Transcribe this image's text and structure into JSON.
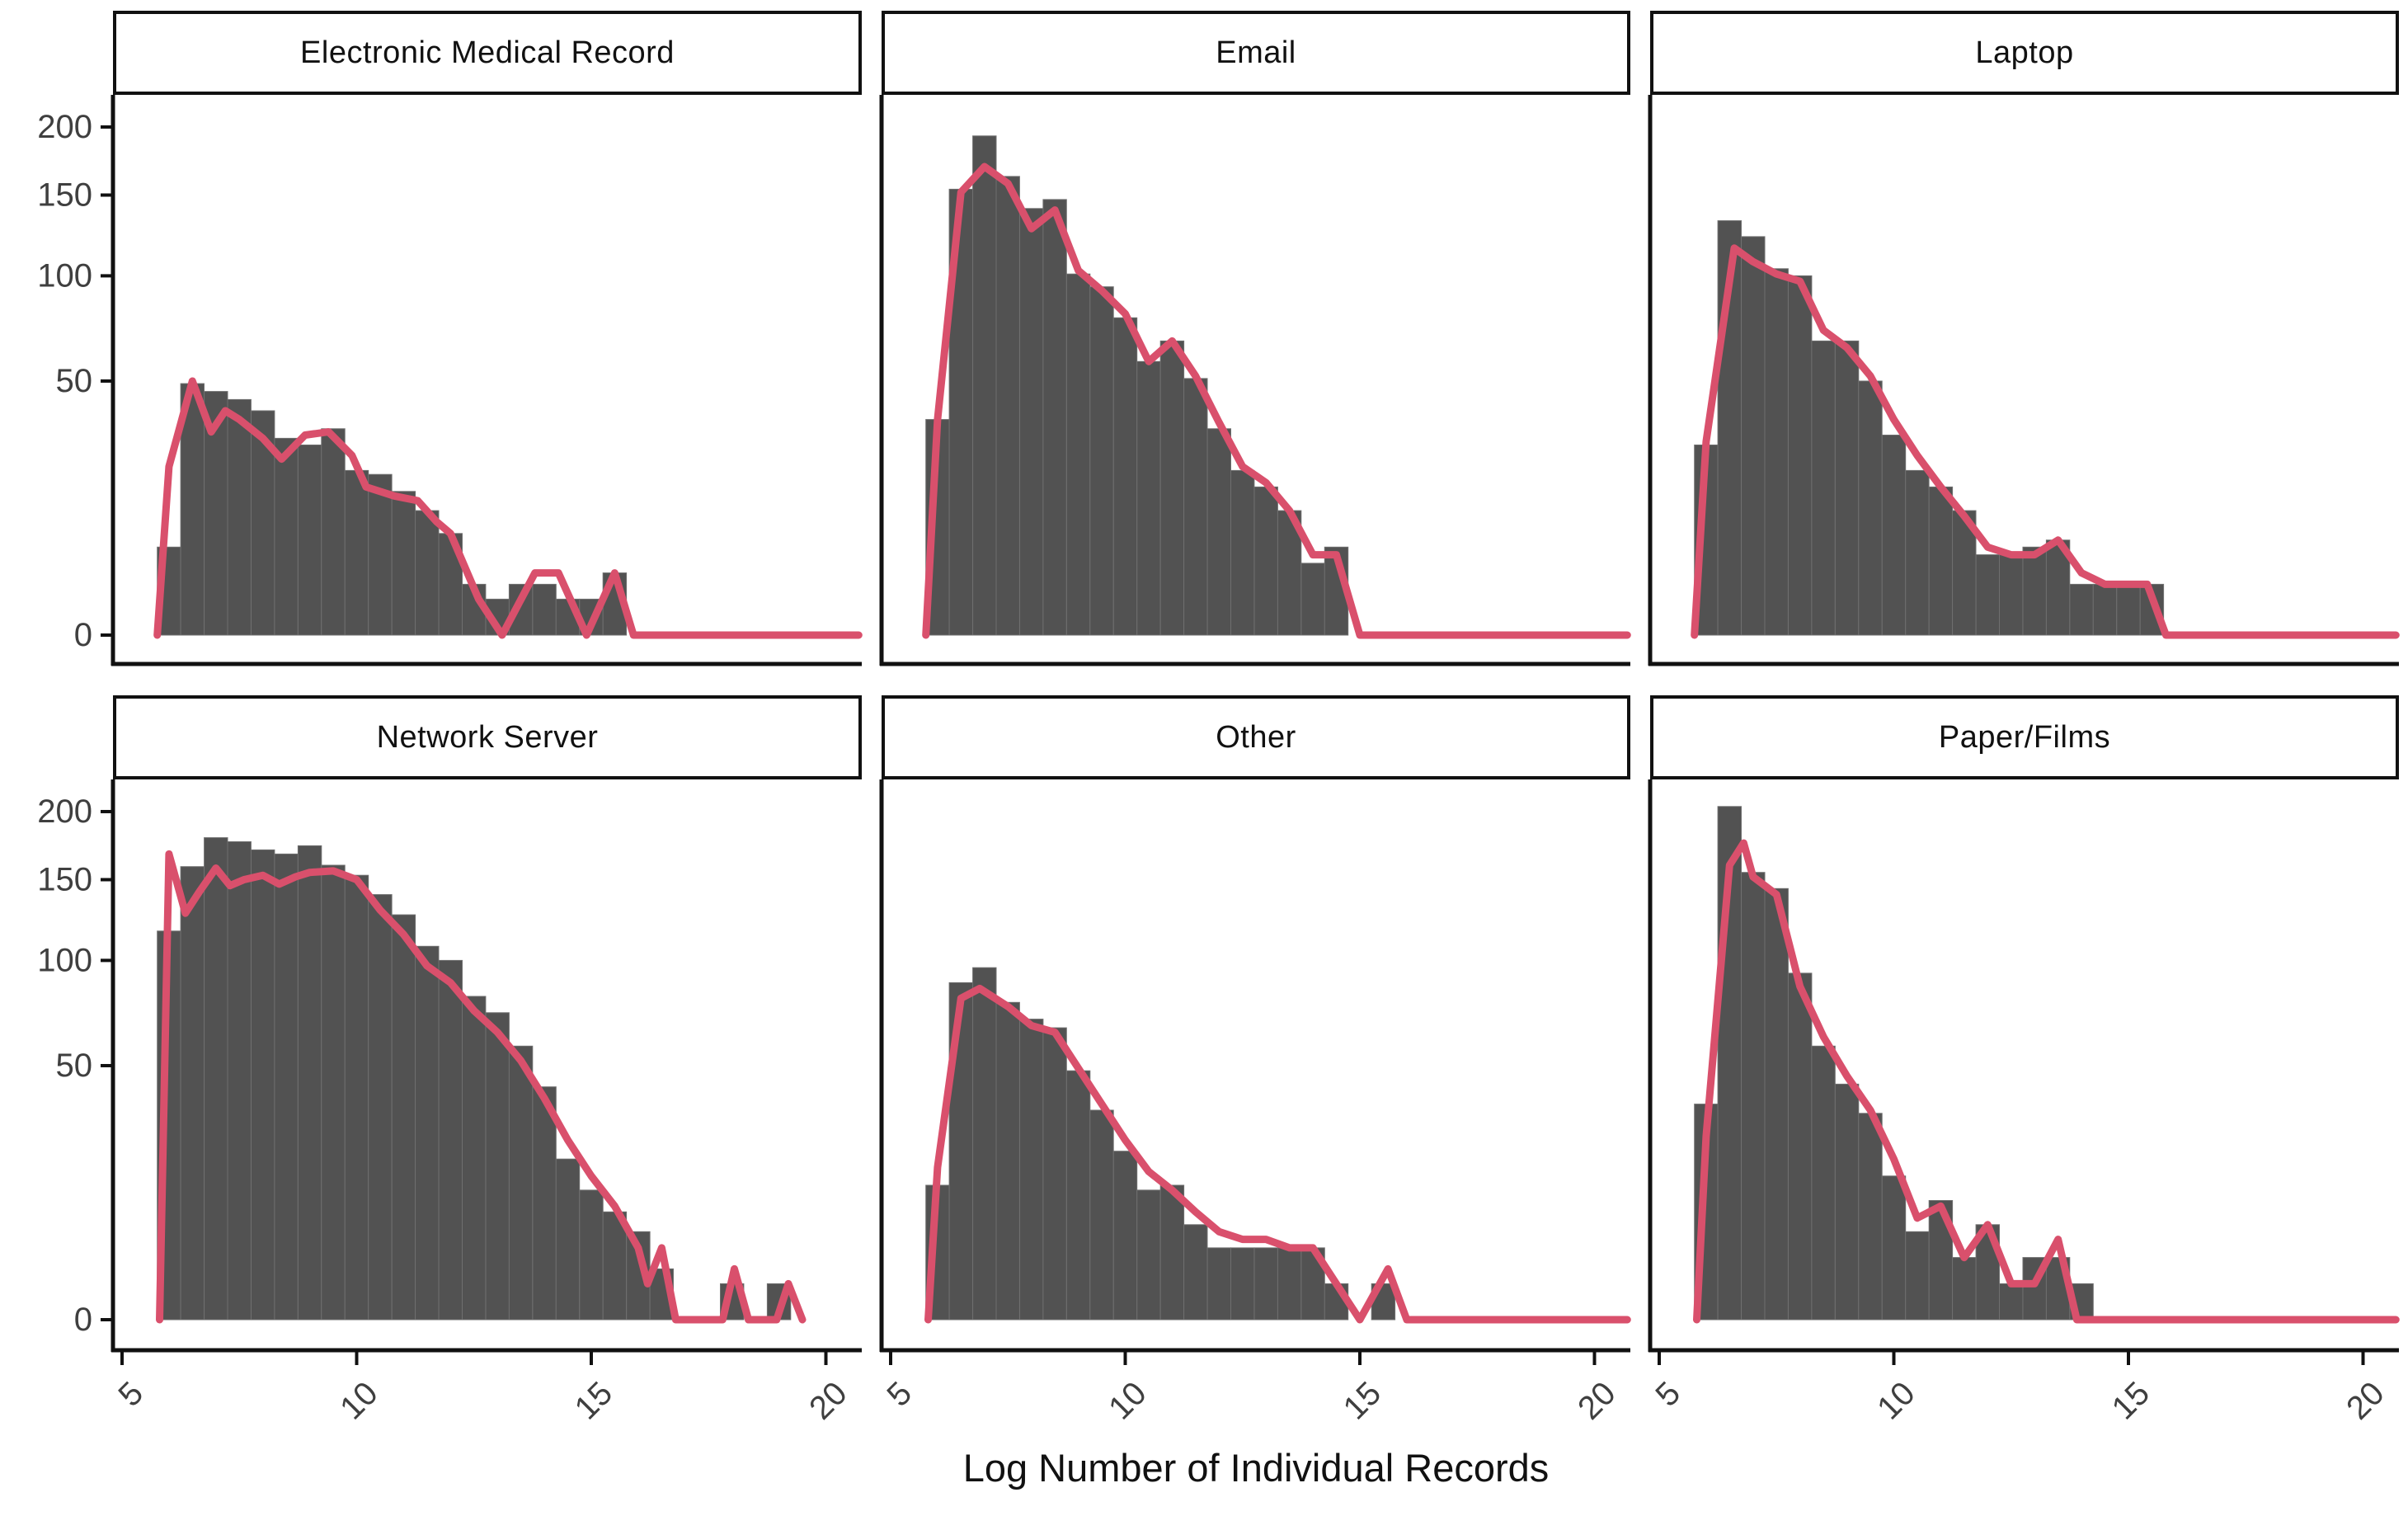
{
  "figure": {
    "x_axis_title": "Log Number of Individual Records",
    "y_tick_labels": [
      "200",
      "150",
      "100",
      "50",
      "0"
    ],
    "x_tick_labels": [
      "5",
      "10",
      "15",
      "20"
    ]
  },
  "style": {
    "bar_fill": "#525252",
    "bar_stroke": "#6f6f6f",
    "line_color": "#d9506c",
    "axis_color": "#111111",
    "tick_label_color": "#3f3f3f"
  },
  "chart_data": {
    "type": "bar",
    "subtype": "faceted-histogram-with-freqpoly",
    "x_scale": "linear",
    "y_scale": "sqrt",
    "x_range": [
      5,
      20
    ],
    "y_ticks": [
      200,
      150,
      100,
      50,
      0
    ],
    "x_ticks": [
      5,
      10,
      15,
      20
    ],
    "xlabel": "Log Number of Individual Records",
    "ylabel": "",
    "bin_start_center": 6.0,
    "bin_width": 0.5,
    "facets": [
      {
        "title": "Electronic Medical Record",
        "slug": "emr",
        "bar_values": [
          6,
          49,
          46,
          43,
          39,
          30,
          28,
          33,
          21,
          20,
          16,
          12,
          8,
          2,
          1,
          2,
          2,
          1,
          1,
          3
        ],
        "line_points": [
          [
            5.75,
            0
          ],
          [
            6.0,
            22
          ],
          [
            6.5,
            50
          ],
          [
            6.9,
            32
          ],
          [
            7.2,
            39
          ],
          [
            7.5,
            36
          ],
          [
            8.0,
            30
          ],
          [
            8.4,
            24
          ],
          [
            8.9,
            31
          ],
          [
            9.4,
            32
          ],
          [
            9.9,
            25
          ],
          [
            10.2,
            17
          ],
          [
            10.8,
            15
          ],
          [
            11.3,
            14
          ],
          [
            11.7,
            10
          ],
          [
            12.0,
            8
          ],
          [
            12.6,
            1
          ],
          [
            13.1,
            0
          ],
          [
            13.8,
            3
          ],
          [
            14.3,
            3
          ],
          [
            14.9,
            0
          ],
          [
            15.5,
            3
          ],
          [
            15.9,
            0
          ],
          [
            20.7,
            0
          ]
        ]
      },
      {
        "title": "Email",
        "slug": "email",
        "bar_values": [
          36,
          154,
          193,
          163,
          141,
          147,
          101,
          94,
          78,
          58,
          67,
          51,
          33,
          21,
          17,
          12,
          4,
          6
        ],
        "line_points": [
          [
            5.75,
            0
          ],
          [
            6.0,
            36
          ],
          [
            6.5,
            152
          ],
          [
            7.0,
            170
          ],
          [
            7.5,
            158
          ],
          [
            8.0,
            128
          ],
          [
            8.5,
            140
          ],
          [
            9.0,
            103
          ],
          [
            9.5,
            92
          ],
          [
            10.0,
            80
          ],
          [
            10.5,
            58
          ],
          [
            11.0,
            67
          ],
          [
            11.5,
            52
          ],
          [
            12.0,
            35
          ],
          [
            12.5,
            22
          ],
          [
            13.0,
            18
          ],
          [
            13.5,
            12
          ],
          [
            14.0,
            5
          ],
          [
            14.5,
            5
          ],
          [
            15.0,
            0
          ],
          [
            20.7,
            0
          ]
        ]
      },
      {
        "title": "Laptop",
        "slug": "laptop",
        "bar_values": [
          28,
          133,
          123,
          104,
          100,
          67,
          67,
          50,
          31,
          21,
          17,
          12,
          5,
          5,
          6,
          7,
          2,
          2,
          2,
          2
        ],
        "line_points": [
          [
            5.75,
            0
          ],
          [
            6.0,
            29
          ],
          [
            6.6,
            116
          ],
          [
            7.0,
            108
          ],
          [
            7.5,
            101
          ],
          [
            8.0,
            97
          ],
          [
            8.5,
            72
          ],
          [
            9.0,
            64
          ],
          [
            9.5,
            52
          ],
          [
            10.0,
            36
          ],
          [
            10.5,
            25
          ],
          [
            11.0,
            17
          ],
          [
            11.5,
            11
          ],
          [
            12.0,
            6
          ],
          [
            12.5,
            5
          ],
          [
            13.0,
            5
          ],
          [
            13.5,
            7
          ],
          [
            14.0,
            3
          ],
          [
            14.5,
            2
          ],
          [
            15.0,
            2
          ],
          [
            15.4,
            2
          ],
          [
            15.8,
            0
          ],
          [
            20.7,
            0
          ]
        ]
      },
      {
        "title": "Network Server",
        "slug": "network-server",
        "bar_values": [
          117,
          159,
          180,
          177,
          171,
          168,
          174,
          160,
          153,
          140,
          127,
          108,
          100,
          81,
          73,
          58,
          42,
          20,
          13,
          9,
          6,
          2,
          0,
          0,
          1,
          0,
          1
        ],
        "line_points": [
          [
            5.8,
            0
          ],
          [
            6.0,
            168
          ],
          [
            6.35,
            128
          ],
          [
            6.65,
            142
          ],
          [
            7.0,
            158
          ],
          [
            7.3,
            146
          ],
          [
            7.6,
            150
          ],
          [
            8.0,
            153
          ],
          [
            8.35,
            147
          ],
          [
            8.7,
            152
          ],
          [
            9.0,
            155
          ],
          [
            9.5,
            156
          ],
          [
            10.0,
            150
          ],
          [
            10.5,
            130
          ],
          [
            11.0,
            115
          ],
          [
            11.5,
            97
          ],
          [
            12.0,
            88
          ],
          [
            12.5,
            74
          ],
          [
            13.0,
            64
          ],
          [
            13.5,
            52
          ],
          [
            14.0,
            38
          ],
          [
            14.5,
            25
          ],
          [
            15.0,
            16
          ],
          [
            15.5,
            10
          ],
          [
            16.0,
            4
          ],
          [
            16.2,
            1
          ],
          [
            16.5,
            4
          ],
          [
            16.8,
            0
          ],
          [
            17.8,
            0
          ],
          [
            18.05,
            2
          ],
          [
            18.35,
            0
          ],
          [
            18.95,
            0
          ],
          [
            19.2,
            1
          ],
          [
            19.5,
            0
          ]
        ]
      },
      {
        "title": "Other",
        "slug": "other",
        "bar_values": [
          14,
          88,
          96,
          78,
          70,
          66,
          48,
          34,
          22,
          13,
          14,
          7,
          4,
          4,
          4,
          4,
          4,
          1,
          0,
          1
        ],
        "line_points": [
          [
            5.8,
            0
          ],
          [
            6.0,
            18
          ],
          [
            6.5,
            80
          ],
          [
            6.9,
            85
          ],
          [
            7.5,
            76
          ],
          [
            8.0,
            67
          ],
          [
            8.5,
            64
          ],
          [
            9.0,
            49
          ],
          [
            9.5,
            36
          ],
          [
            10.0,
            25
          ],
          [
            10.5,
            17
          ],
          [
            11.0,
            13
          ],
          [
            11.5,
            9
          ],
          [
            12.0,
            6
          ],
          [
            12.5,
            5
          ],
          [
            13.0,
            5
          ],
          [
            13.5,
            4
          ],
          [
            14.0,
            4
          ],
          [
            14.5,
            1
          ],
          [
            15.0,
            0
          ],
          [
            15.6,
            2
          ],
          [
            16.0,
            0
          ],
          [
            20.7,
            0
          ]
        ]
      },
      {
        "title": "Paper/Films",
        "slug": "paper-films",
        "bar_values": [
          36,
          204,
          155,
          144,
          93,
          58,
          43,
          33,
          16,
          6,
          11,
          3,
          7,
          1,
          3,
          3,
          1
        ],
        "line_points": [
          [
            5.8,
            0
          ],
          [
            6.0,
            26
          ],
          [
            6.5,
            160
          ],
          [
            6.8,
            176
          ],
          [
            7.0,
            152
          ],
          [
            7.5,
            140
          ],
          [
            8.0,
            86
          ],
          [
            8.5,
            62
          ],
          [
            9.0,
            46
          ],
          [
            9.5,
            34
          ],
          [
            10.0,
            20
          ],
          [
            10.5,
            8
          ],
          [
            11.0,
            10
          ],
          [
            11.5,
            3
          ],
          [
            12.0,
            7
          ],
          [
            12.5,
            1
          ],
          [
            13.0,
            1
          ],
          [
            13.5,
            5
          ],
          [
            13.9,
            0
          ],
          [
            20.7,
            0
          ]
        ]
      }
    ]
  }
}
